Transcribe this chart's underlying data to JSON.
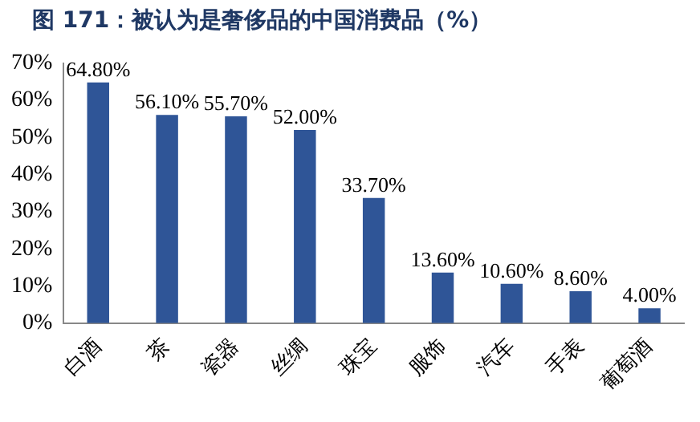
{
  "chart_data": {
    "type": "bar",
    "title": "图 171：被认为是奢侈品的中国消费品（%）",
    "categories": [
      "白酒",
      "茶",
      "瓷器",
      "丝绸",
      "珠宝",
      "服饰",
      "汽车",
      "手表",
      "葡萄酒"
    ],
    "values": [
      64.8,
      56.1,
      55.7,
      52.0,
      33.7,
      13.6,
      10.6,
      8.6,
      4.0
    ],
    "value_labels": [
      "64.80%",
      "56.10%",
      "55.70%",
      "52.00%",
      "33.70%",
      "13.60%",
      "10.60%",
      "8.60%",
      "4.00%"
    ],
    "color": "#2f5597",
    "ylim": [
      0,
      70
    ],
    "yticks": [
      {
        "value": 0,
        "label": "0%"
      },
      {
        "value": 10,
        "label": "10%"
      },
      {
        "value": 20,
        "label": "20%"
      },
      {
        "value": 30,
        "label": "30%"
      },
      {
        "value": 40,
        "label": "40%"
      },
      {
        "value": 50,
        "label": "50%"
      },
      {
        "value": 60,
        "label": "60%"
      },
      {
        "value": 70,
        "label": "70%"
      }
    ],
    "grid": false,
    "legend": false
  }
}
